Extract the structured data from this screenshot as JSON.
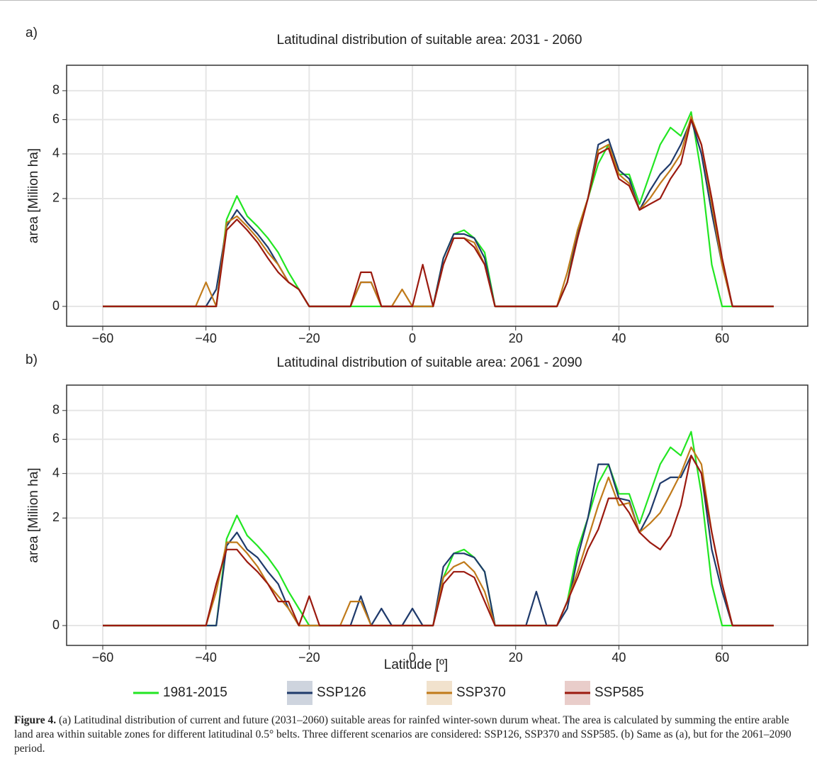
{
  "chart_data": [
    {
      "type": "line",
      "panel_label": "a)",
      "title": "Latitudinal distribution of suitable area: 2031 - 2060",
      "y_label": "area [Miliion ha]",
      "y_scale": "sqrt",
      "grid": true,
      "xlim": [
        -67,
        76.6
      ],
      "ylim": [
        0,
        10
      ],
      "xticks": [
        {
          "value": -60,
          "label": "−60"
        },
        {
          "value": -40,
          "label": "−40"
        },
        {
          "value": -20,
          "label": "−20"
        },
        0,
        20,
        40,
        60
      ],
      "yticks": [
        0,
        2,
        4,
        6,
        8
      ],
      "x": [
        -60,
        -58,
        -56,
        -54,
        -52,
        -50,
        -48,
        -46,
        -44,
        -42,
        -40,
        -38,
        -36,
        -34,
        -32,
        -30,
        -28,
        -26,
        -24,
        -22,
        -20,
        -18,
        -16,
        -14,
        -12,
        -10,
        -8,
        -6,
        -4,
        -2,
        0,
        2,
        4,
        6,
        8,
        10,
        12,
        14,
        16,
        18,
        20,
        22,
        24,
        26,
        28,
        30,
        32,
        34,
        36,
        38,
        40,
        42,
        44,
        46,
        48,
        50,
        52,
        54,
        56,
        58,
        60,
        62,
        64,
        66,
        68,
        70
      ],
      "series": [
        {
          "name": "1981-2015",
          "color": "#22e622",
          "values": [
            0,
            0,
            0,
            0,
            0,
            0,
            0,
            0,
            0,
            0,
            0,
            0,
            1.3,
            2.1,
            1.4,
            1.1,
            0.8,
            0.5,
            0.2,
            0.05,
            0,
            0,
            0,
            0,
            0,
            0,
            0,
            0,
            0,
            0,
            0,
            0,
            0,
            0.4,
            0.9,
            1.0,
            0.8,
            0.5,
            0,
            0,
            0,
            0,
            0,
            0,
            0,
            0.1,
            1.0,
            2.0,
            3.5,
            4.5,
            3.0,
            3.0,
            1.8,
            3.0,
            4.5,
            5.5,
            5.0,
            6.5,
            3.0,
            0.3,
            0,
            0,
            0,
            0,
            0,
            0
          ]
        },
        {
          "name": "SSP126",
          "color": "#1f3a6b",
          "values": [
            0,
            0,
            0,
            0,
            0,
            0,
            0,
            0,
            0,
            0,
            0,
            0.05,
            1.1,
            1.6,
            1.2,
            0.9,
            0.6,
            0.3,
            0.1,
            0.05,
            0,
            0,
            0,
            0,
            0,
            0.1,
            0.1,
            0,
            0,
            0,
            0,
            0,
            0,
            0.4,
            0.9,
            0.9,
            0.8,
            0.4,
            0,
            0,
            0,
            0,
            0,
            0,
            0,
            0.1,
            0.9,
            2.0,
            4.5,
            4.8,
            3.2,
            2.8,
            1.6,
            2.3,
            3.0,
            3.5,
            4.5,
            6.0,
            4.0,
            1.5,
            0.3,
            0,
            0,
            0,
            0,
            0
          ]
        },
        {
          "name": "SSP370",
          "color": "#c07a1a",
          "values": [
            0,
            0,
            0,
            0,
            0,
            0,
            0,
            0,
            0,
            0,
            0.1,
            0,
            1.2,
            1.4,
            1.1,
            0.8,
            0.5,
            0.3,
            0.1,
            0.05,
            0,
            0,
            0,
            0,
            0,
            0.1,
            0.1,
            0,
            0,
            0.05,
            0,
            0,
            0,
            0.3,
            0.8,
            0.8,
            0.7,
            0.3,
            0,
            0,
            0,
            0,
            0,
            0,
            0,
            0.2,
            1.0,
            2.0,
            4.2,
            4.5,
            3.0,
            2.6,
            1.6,
            2.0,
            2.6,
            3.2,
            4.0,
            6.2,
            4.5,
            1.8,
            0.3,
            0,
            0,
            0,
            0,
            0
          ]
        },
        {
          "name": "SSP585",
          "color": "#9b1a0f",
          "values": [
            0,
            0,
            0,
            0,
            0,
            0,
            0,
            0,
            0,
            0,
            0,
            0,
            1.0,
            1.3,
            1.0,
            0.7,
            0.4,
            0.2,
            0.1,
            0.05,
            0,
            0,
            0,
            0,
            0,
            0.2,
            0.2,
            0,
            0,
            0,
            0,
            0.3,
            0,
            0.3,
            0.8,
            0.8,
            0.6,
            0.3,
            0,
            0,
            0,
            0,
            0,
            0,
            0,
            0.1,
            0.8,
            2.0,
            4.0,
            4.3,
            2.8,
            2.5,
            1.6,
            1.8,
            2.0,
            2.8,
            3.5,
            6.0,
            4.5,
            2.0,
            0.4,
            0,
            0,
            0,
            0,
            0
          ]
        }
      ]
    },
    {
      "type": "line",
      "panel_label": "b)",
      "title": "Latitudinal distribution of suitable area: 2061 - 2090",
      "y_label": "area [Miliion ha]",
      "x_label": "Latitude [º]",
      "y_scale": "sqrt",
      "grid": true,
      "xlim": [
        -67,
        76.6
      ],
      "ylim": [
        0,
        10
      ],
      "xticks": [
        {
          "value": -60,
          "label": "−60"
        },
        {
          "value": -40,
          "label": "−40"
        },
        {
          "value": -20,
          "label": "−20"
        },
        0,
        20,
        40,
        60
      ],
      "yticks": [
        0,
        2,
        4,
        6,
        8
      ],
      "x": [
        -60,
        -58,
        -56,
        -54,
        -52,
        -50,
        -48,
        -46,
        -44,
        -42,
        -40,
        -38,
        -36,
        -34,
        -32,
        -30,
        -28,
        -26,
        -24,
        -22,
        -20,
        -18,
        -16,
        -14,
        -12,
        -10,
        -8,
        -6,
        -4,
        -2,
        0,
        2,
        4,
        6,
        8,
        10,
        12,
        14,
        16,
        18,
        20,
        22,
        24,
        26,
        28,
        30,
        32,
        34,
        36,
        38,
        40,
        42,
        44,
        46,
        48,
        50,
        52,
        54,
        56,
        58,
        60,
        62,
        64,
        66,
        68,
        70
      ],
      "series": [
        {
          "name": "1981-2015",
          "color": "#22e622",
          "values": [
            0,
            0,
            0,
            0,
            0,
            0,
            0,
            0,
            0,
            0,
            0,
            0,
            1.3,
            2.1,
            1.4,
            1.1,
            0.8,
            0.5,
            0.2,
            0.05,
            0,
            0,
            0,
            0,
            0,
            0,
            0,
            0,
            0,
            0,
            0,
            0,
            0,
            0.4,
            0.9,
            1.0,
            0.8,
            0.5,
            0,
            0,
            0,
            0,
            0,
            0,
            0,
            0.1,
            1.0,
            2.0,
            3.5,
            4.5,
            3.0,
            3.0,
            1.8,
            3.0,
            4.5,
            5.5,
            5.0,
            6.5,
            3.0,
            0.3,
            0,
            0,
            0,
            0,
            0,
            0
          ]
        },
        {
          "name": "SSP126",
          "color": "#1f3a6b",
          "values": [
            0,
            0,
            0,
            0,
            0,
            0,
            0,
            0,
            0,
            0,
            0,
            0,
            1.1,
            1.5,
            1.0,
            0.8,
            0.5,
            0.3,
            0.05,
            0,
            0,
            0,
            0,
            0,
            0,
            0.15,
            0,
            0.05,
            0,
            0,
            0.05,
            0,
            0,
            0.6,
            0.9,
            0.9,
            0.8,
            0.5,
            0,
            0,
            0,
            0,
            0.2,
            0,
            0,
            0.05,
            0.8,
            2.0,
            4.5,
            4.5,
            2.8,
            2.7,
            1.5,
            2.2,
            3.5,
            3.8,
            3.8,
            5.0,
            4.0,
            1.0,
            0.2,
            0,
            0,
            0,
            0,
            0
          ]
        },
        {
          "name": "SSP370",
          "color": "#c07a1a",
          "values": [
            0,
            0,
            0,
            0,
            0,
            0,
            0,
            0,
            0,
            0,
            0,
            0.2,
            1.2,
            1.2,
            0.9,
            0.6,
            0.3,
            0.15,
            0.05,
            0,
            0,
            0,
            0,
            0,
            0.1,
            0.1,
            0,
            0,
            0,
            0,
            0,
            0,
            0,
            0.4,
            0.6,
            0.7,
            0.5,
            0.2,
            0,
            0,
            0,
            0,
            0,
            0,
            0,
            0.1,
            0.5,
            1.3,
            2.5,
            3.8,
            2.5,
            2.6,
            1.5,
            1.8,
            2.2,
            3.0,
            4.0,
            5.5,
            4.5,
            1.5,
            0.3,
            0,
            0,
            0,
            0,
            0
          ]
        },
        {
          "name": "SSP585",
          "color": "#9b1a0f",
          "values": [
            0,
            0,
            0,
            0,
            0,
            0,
            0,
            0,
            0,
            0,
            0,
            0.3,
            1.0,
            1.0,
            0.7,
            0.5,
            0.3,
            0.1,
            0.1,
            0,
            0.15,
            0,
            0,
            0,
            0,
            0,
            0,
            0,
            0,
            0,
            0,
            0,
            0,
            0.3,
            0.5,
            0.5,
            0.4,
            0.1,
            0,
            0,
            0,
            0,
            0,
            0,
            0,
            0.1,
            0.4,
            1.0,
            1.6,
            2.8,
            2.8,
            2.2,
            1.5,
            1.2,
            1.0,
            1.4,
            2.5,
            5.0,
            4.0,
            1.5,
            0.3,
            0,
            0,
            0,
            0,
            0
          ]
        }
      ]
    }
  ],
  "caption": {
    "label": "Figure 4.",
    "text": "(a) Latitudinal distribution of current and future (2031–2060) suitable areas for rainfed winter-sown durum wheat. The area is calculated by summing the entire arable land area within suitable zones for different latitudinal 0.5° belts. Three different scenarios are considered: SSP126, SSP370 and SSP585. (b) Same as (a), but for the 2061–2090 period."
  }
}
